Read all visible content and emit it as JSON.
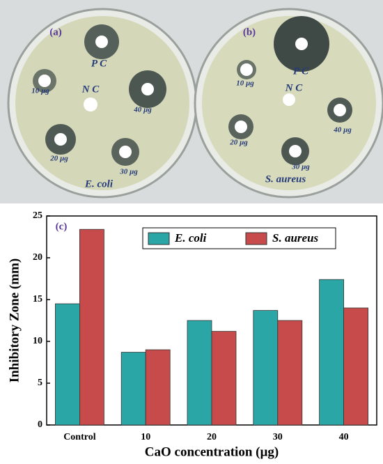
{
  "photos": [
    {
      "panel": "(a)",
      "pc": "P C",
      "nc": "N C",
      "d10": "10 µg",
      "d20": "20 µg",
      "d30": "30 µg",
      "d40": "40 µg",
      "organism": "E. coli"
    },
    {
      "panel": "(b)",
      "pc": "P C",
      "nc": "N C",
      "d10": "10 µg",
      "d20": "20 µg",
      "d30": "30 µg",
      "d40": "40 µg",
      "organism": "S. aureus"
    }
  ],
  "chart_data": {
    "type": "bar",
    "panel": "(c)",
    "x_label": "CaO concentration (µg)",
    "y_label": "Inhibitory Zone (mm)",
    "categories": [
      "Control",
      "10",
      "20",
      "30",
      "40"
    ],
    "series": [
      {
        "name": "E. coli",
        "color": "#2aa6a6",
        "values": [
          14.5,
          8.7,
          12.5,
          13.7,
          17.4
        ]
      },
      {
        "name": "S. aureus",
        "color": "#c84b4b",
        "values": [
          23.4,
          9.0,
          11.2,
          12.5,
          14.0
        ]
      }
    ],
    "ylim": [
      0,
      25
    ],
    "yticks": [
      0,
      5,
      10,
      15,
      20,
      25
    ],
    "legend": "top-right"
  }
}
